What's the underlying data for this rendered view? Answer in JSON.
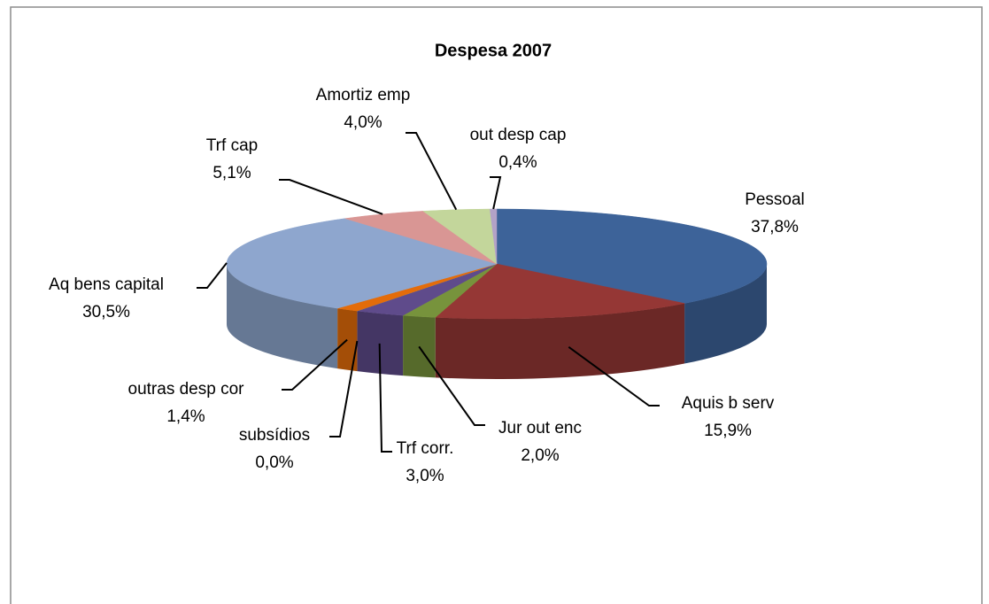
{
  "chart_data": {
    "type": "pie",
    "title": "Despesa 2007",
    "categories": [
      "Pessoal",
      "Aquis b serv",
      "Jur out enc",
      "Trf corr.",
      "subsídios",
      "outras desp cor",
      "Aq bens capital",
      "Trf cap",
      "Amortiz emp",
      "out desp cap"
    ],
    "values": [
      37.8,
      15.9,
      2.0,
      3.0,
      0.0,
      1.4,
      30.5,
      5.1,
      4.0,
      0.4
    ],
    "value_labels": [
      "37,8%",
      "15,9%",
      "2,0%",
      "3,0%",
      "0,0%",
      "1,4%",
      "30,5%",
      "5,1%",
      "4,0%",
      "0,4%"
    ],
    "colors": [
      "#3d6399",
      "#953735",
      "#77933c",
      "#5f4b8b",
      "#4bacc6",
      "#e46c0a",
      "#8ea6ce",
      "#d99694",
      "#c3d69b",
      "#b3a2c7"
    ]
  }
}
